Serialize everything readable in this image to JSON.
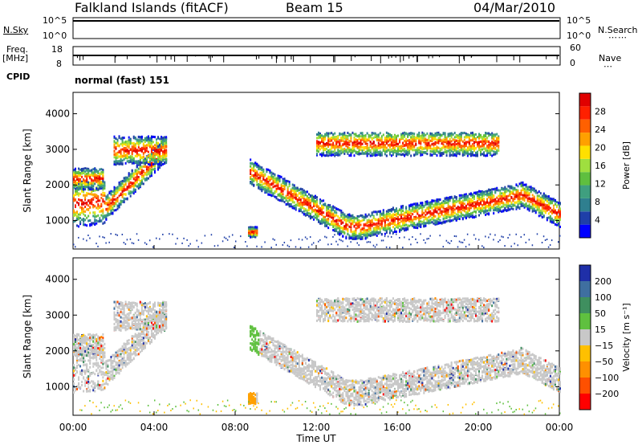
{
  "header": {
    "station": "Falkland Islands (fitACF)",
    "beam": "Beam 15",
    "date": "04/Mar/2010"
  },
  "strips": {
    "nsky_label": "N.Sky",
    "nsky_ticks": [
      "10^5",
      "10^0"
    ],
    "freq_label_line1": "Freq.",
    "freq_label_line2": "[MHz]",
    "freq_ticks": [
      "18",
      "8"
    ],
    "nsearch_label": "N.Search",
    "nave_label": "Nave",
    "nave_ticks": [
      "60",
      "0"
    ],
    "cpid_label": "CPID",
    "cpid_value": "normal (fast) 151"
  },
  "colors": {
    "power": [
      "#0000ff",
      "#1f3fa8",
      "#2f7f8f",
      "#3f9f7f",
      "#5fbf3f",
      "#9fdf3f",
      "#ffe000",
      "#ffa000",
      "#ff6000",
      "#ff2000",
      "#e00000"
    ],
    "velocity": [
      "#1f2fa8",
      "#3f6fa0",
      "#3f8f5f",
      "#5fc03f",
      "#c8c8c8",
      "#ffc000",
      "#ff9000",
      "#ff5000",
      "#ff0000"
    ]
  },
  "chart_data": [
    {
      "type": "heatmap",
      "name": "Power",
      "ylabel": "Slant Range [km]",
      "xlabel": "Time UT",
      "x_ticks": [
        "00:00",
        "04:00",
        "08:00",
        "12:00",
        "16:00",
        "20:00",
        "00:00"
      ],
      "y_ticks": [
        1000,
        2000,
        3000,
        4000
      ],
      "ylim": [
        200,
        4600
      ],
      "colorbar_label": "Power [dB]",
      "colorbar_ticks": [
        4,
        8,
        12,
        16,
        20,
        24,
        28
      ]
    },
    {
      "type": "heatmap",
      "name": "Velocity",
      "ylabel": "Slant Range [km]",
      "xlabel": "Time UT",
      "x_ticks": [
        "00:00",
        "04:00",
        "08:00",
        "12:00",
        "16:00",
        "20:00",
        "00:00"
      ],
      "y_ticks": [
        1000,
        2000,
        3000,
        4000
      ],
      "ylim": [
        200,
        4600
      ],
      "colorbar_label": "Velocity [m s⁻¹]",
      "colorbar_ticks": [
        200,
        100,
        50,
        15,
        -15,
        -50,
        -100,
        -200
      ]
    }
  ]
}
